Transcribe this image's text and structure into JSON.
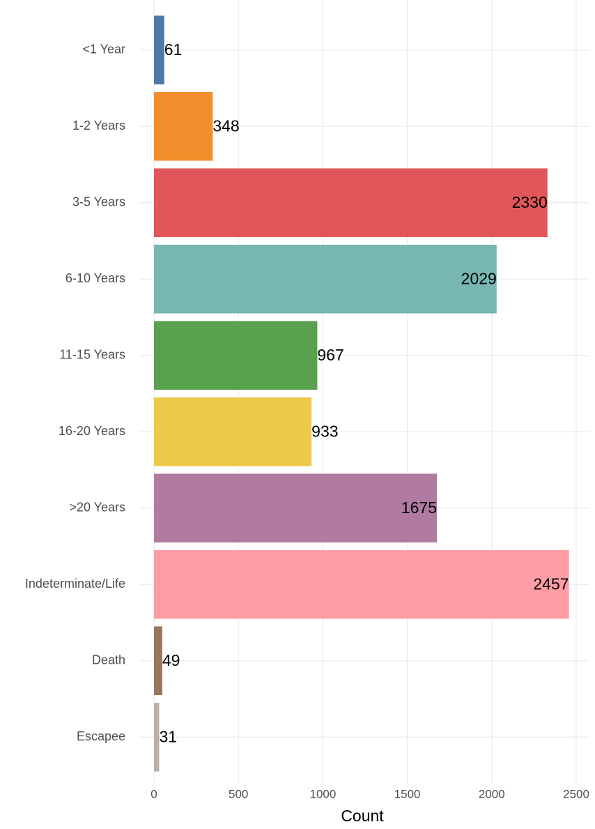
{
  "chart_data": {
    "type": "bar",
    "orientation": "horizontal",
    "categories": [
      "<1 Year",
      "1-2 Years",
      "3-5 Years",
      "6-10 Years",
      "11-15 Years",
      "16-20 Years",
      ">20 Years",
      "Indeterminate/Life",
      "Death",
      "Escapee"
    ],
    "values": [
      61,
      348,
      2330,
      2029,
      967,
      933,
      1675,
      2457,
      49,
      31
    ],
    "colors": [
      "#4e79a7",
      "#f28e2b",
      "#e15759",
      "#76b7b2",
      "#59a14f",
      "#edc948",
      "#b07aa1",
      "#ff9da7",
      "#9c755f",
      "#bab0ac"
    ],
    "xlabel": "Count",
    "xlim": [
      0,
      2500
    ],
    "xticks": [
      0,
      500,
      1000,
      1500,
      2000,
      2500
    ],
    "grid": true
  }
}
